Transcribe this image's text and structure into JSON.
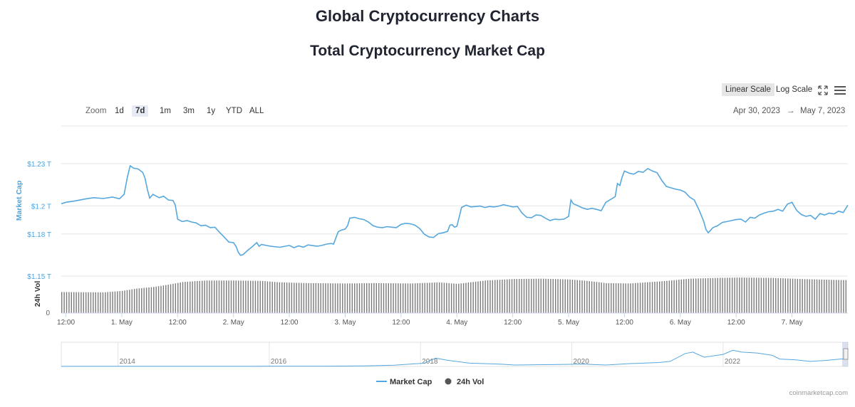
{
  "header": {
    "page_title": "Global Cryptocurrency Charts",
    "chart_title": "Total Cryptocurrency Market Cap"
  },
  "controls": {
    "zoom_label": "Zoom",
    "zoom_options": [
      "1d",
      "7d",
      "1m",
      "3m",
      "1y",
      "YTD",
      "ALL"
    ],
    "zoom_selected": "7d",
    "linear_scale_label": "Linear Scale",
    "log_scale_label": "Log Scale",
    "scale_selected": "Linear Scale",
    "range_from": "Apr 30, 2023",
    "range_arrow": "→",
    "range_to": "May 7, 2023"
  },
  "watermark": "coinmarketcap.com",
  "colors": {
    "market_cap_line": "#56a7dd",
    "volume_bar": "#7a7a7a",
    "grid": "#e6e6e6",
    "axis_label": "#4aa3df",
    "active_button": "#e6ebf5"
  },
  "chart_data": {
    "type": "line",
    "x_tick_labels": [
      "12:00",
      "1. May",
      "12:00",
      "2. May",
      "12:00",
      "3. May",
      "12:00",
      "4. May",
      "12:00",
      "5. May",
      "12:00",
      "6. May",
      "12:00",
      "7. May"
    ],
    "x_tick_hours": [
      12,
      24,
      36,
      48,
      60,
      72,
      84,
      96,
      108,
      120,
      132,
      144,
      156,
      168
    ],
    "x_range_hours": [
      11,
      180
    ],
    "market_cap": {
      "name": "Market Cap",
      "ylabel": "Market Cap",
      "y_tick_labels": [
        "$1.15 T",
        "$1.18 T",
        "$1.2 T",
        "$1.23 T"
      ],
      "y_ticks": [
        1.15,
        1.18,
        1.2,
        1.23
      ],
      "ylim": [
        1.15,
        1.23
      ],
      "points": [
        [
          11,
          1.2015
        ],
        [
          12,
          1.2025
        ],
        [
          14,
          1.2035
        ],
        [
          16,
          1.2048
        ],
        [
          18,
          1.2058
        ],
        [
          20,
          1.2052
        ],
        [
          22,
          1.2062
        ],
        [
          23.5,
          1.205
        ],
        [
          24.5,
          1.2082
        ],
        [
          25.2,
          1.2205
        ],
        [
          25.8,
          1.2285
        ],
        [
          26.5,
          1.2268
        ],
        [
          27.5,
          1.2262
        ],
        [
          28.5,
          1.2238
        ],
        [
          29,
          1.2195
        ],
        [
          29.5,
          1.2115
        ],
        [
          30,
          1.2055
        ],
        [
          30.7,
          1.2082
        ],
        [
          32,
          1.2058
        ],
        [
          33,
          1.2068
        ],
        [
          34,
          1.2042
        ],
        [
          35,
          1.2038
        ],
        [
          35.5,
          1.2005
        ],
        [
          36,
          1.1905
        ],
        [
          37,
          1.1888
        ],
        [
          38,
          1.1895
        ],
        [
          39,
          1.1885
        ],
        [
          40,
          1.1878
        ],
        [
          41,
          1.1858
        ],
        [
          42,
          1.1862
        ],
        [
          43,
          1.1845
        ],
        [
          44,
          1.1848
        ],
        [
          45,
          1.1812
        ],
        [
          46,
          1.1778
        ],
        [
          47,
          1.1742
        ],
        [
          48,
          1.1738
        ],
        [
          48.6,
          1.1708
        ],
        [
          49,
          1.1672
        ],
        [
          49.5,
          1.1648
        ],
        [
          50,
          1.1652
        ],
        [
          51,
          1.1682
        ],
        [
          52,
          1.1708
        ],
        [
          53,
          1.1738
        ],
        [
          53.5,
          1.1712
        ],
        [
          54,
          1.1725
        ],
        [
          56,
          1.1712
        ],
        [
          58,
          1.1705
        ],
        [
          60,
          1.1718
        ],
        [
          61,
          1.1702
        ],
        [
          62,
          1.1715
        ],
        [
          63,
          1.1705
        ],
        [
          64,
          1.1722
        ],
        [
          66,
          1.1712
        ],
        [
          67,
          1.1718
        ],
        [
          68,
          1.1728
        ],
        [
          69,
          1.1732
        ],
        [
          69.5,
          1.1728
        ],
        [
          70,
          1.1772
        ],
        [
          70.5,
          1.1815
        ],
        [
          71,
          1.1825
        ],
        [
          72,
          1.1835
        ],
        [
          72.5,
          1.1858
        ],
        [
          73,
          1.1912
        ],
        [
          74,
          1.1918
        ],
        [
          75,
          1.1908
        ],
        [
          76,
          1.1902
        ],
        [
          77,
          1.1885
        ],
        [
          78,
          1.1858
        ],
        [
          79,
          1.1848
        ],
        [
          80,
          1.1845
        ],
        [
          81,
          1.1852
        ],
        [
          82,
          1.1848
        ],
        [
          83,
          1.1845
        ],
        [
          84,
          1.1868
        ],
        [
          85,
          1.1875
        ],
        [
          86,
          1.1872
        ],
        [
          87,
          1.1862
        ],
        [
          88,
          1.1838
        ],
        [
          89,
          1.1798
        ],
        [
          90,
          1.1778
        ],
        [
          91,
          1.1775
        ],
        [
          92,
          1.1802
        ],
        [
          93,
          1.1808
        ],
        [
          94,
          1.1818
        ],
        [
          94.5,
          1.1862
        ],
        [
          95,
          1.1865
        ],
        [
          95.5,
          1.1848
        ],
        [
          96,
          1.1855
        ],
        [
          97,
          1.1988
        ],
        [
          98,
          1.2005
        ],
        [
          99,
          1.1992
        ],
        [
          100,
          1.1995
        ],
        [
          101,
          1.1998
        ],
        [
          102,
          1.1988
        ],
        [
          103,
          1.1995
        ],
        [
          104,
          1.1992
        ],
        [
          105,
          1.1998
        ],
        [
          106,
          1.2008
        ],
        [
          107,
          1.2001
        ],
        [
          108,
          1.1992
        ],
        [
          109,
          1.1995
        ],
        [
          110,
          1.1948
        ],
        [
          111,
          1.1918
        ],
        [
          112,
          1.1915
        ],
        [
          113,
          1.1935
        ],
        [
          114,
          1.1932
        ],
        [
          115,
          1.1912
        ],
        [
          116,
          1.1895
        ],
        [
          117,
          1.1905
        ],
        [
          118,
          1.1902
        ],
        [
          119,
          1.1905
        ],
        [
          120,
          1.1925
        ],
        [
          120.5,
          1.2042
        ],
        [
          121,
          1.2015
        ],
        [
          122,
          1.2001
        ],
        [
          123,
          1.1985
        ],
        [
          124,
          1.1975
        ],
        [
          125,
          1.1982
        ],
        [
          126,
          1.1975
        ],
        [
          127,
          1.1965
        ],
        [
          127.5,
          1.1995
        ],
        [
          128,
          1.2025
        ],
        [
          129,
          1.2045
        ],
        [
          130,
          1.2065
        ],
        [
          130.5,
          1.2158
        ],
        [
          131,
          1.2145
        ],
        [
          131.5,
          1.2205
        ],
        [
          132,
          1.2248
        ],
        [
          133,
          1.2232
        ],
        [
          134,
          1.2225
        ],
        [
          135,
          1.2245
        ],
        [
          136,
          1.2238
        ],
        [
          137,
          1.2265
        ],
        [
          138,
          1.2248
        ],
        [
          139,
          1.2235
        ],
        [
          140,
          1.2182
        ],
        [
          141,
          1.2138
        ],
        [
          142,
          1.2128
        ],
        [
          143,
          1.2118
        ],
        [
          144,
          1.2112
        ],
        [
          145,
          1.2098
        ],
        [
          146,
          1.2062
        ],
        [
          147,
          1.2042
        ],
        [
          148,
          1.1972
        ],
        [
          149,
          1.1892
        ],
        [
          149.5,
          1.1832
        ],
        [
          150,
          1.1808
        ],
        [
          151,
          1.1845
        ],
        [
          152,
          1.1858
        ],
        [
          153,
          1.1882
        ],
        [
          154,
          1.1888
        ],
        [
          155,
          1.1895
        ],
        [
          156,
          1.1902
        ],
        [
          157,
          1.1905
        ],
        [
          158,
          1.1885
        ],
        [
          159,
          1.1918
        ],
        [
          160,
          1.1912
        ],
        [
          161,
          1.1935
        ],
        [
          162,
          1.1948
        ],
        [
          163,
          1.1958
        ],
        [
          164,
          1.1962
        ],
        [
          165,
          1.1975
        ],
        [
          166,
          1.1962
        ],
        [
          167,
          1.2012
        ],
        [
          168,
          1.2025
        ],
        [
          168.5,
          1.1995
        ],
        [
          169,
          1.1968
        ],
        [
          170,
          1.1938
        ],
        [
          171,
          1.1925
        ],
        [
          172,
          1.1932
        ],
        [
          173,
          1.1905
        ],
        [
          174,
          1.1945
        ],
        [
          175,
          1.1935
        ],
        [
          176,
          1.1948
        ],
        [
          177,
          1.1942
        ],
        [
          178,
          1.1962
        ],
        [
          179,
          1.1952
        ],
        [
          180,
          1.2005
        ]
      ]
    },
    "volume": {
      "name": "24h Vol",
      "ylabel": "24h Vol",
      "y_tick_labels": [
        "0"
      ],
      "relative_points": [
        [
          11,
          0.57
        ],
        [
          20,
          0.56
        ],
        [
          24,
          0.6
        ],
        [
          27,
          0.66
        ],
        [
          31,
          0.71
        ],
        [
          34,
          0.77
        ],
        [
          37,
          0.84
        ],
        [
          42,
          0.88
        ],
        [
          48,
          0.88
        ],
        [
          54,
          0.87
        ],
        [
          58,
          0.83
        ],
        [
          64,
          0.81
        ],
        [
          72,
          0.8
        ],
        [
          78,
          0.81
        ],
        [
          86,
          0.8
        ],
        [
          92,
          0.83
        ],
        [
          96,
          0.79
        ],
        [
          102,
          0.88
        ],
        [
          108,
          0.92
        ],
        [
          114,
          0.93
        ],
        [
          120,
          0.91
        ],
        [
          124,
          0.87
        ],
        [
          128,
          0.81
        ],
        [
          133,
          0.8
        ],
        [
          140,
          0.86
        ],
        [
          146,
          0.93
        ],
        [
          152,
          0.95
        ],
        [
          157,
          0.96
        ],
        [
          164,
          0.95
        ],
        [
          170,
          0.92
        ],
        [
          176,
          0.9
        ],
        [
          180,
          0.89
        ]
      ]
    },
    "navigator": {
      "tick_labels": [
        "2014",
        "2016",
        "2018",
        "2020",
        "2022"
      ],
      "tick_years": [
        2013.75,
        2015.75,
        2017.75,
        2019.75,
        2021.75
      ],
      "x_range_years": [
        2013.0,
        2023.4
      ],
      "relative_points": [
        [
          2013.0,
          0.01
        ],
        [
          2013.5,
          0.02
        ],
        [
          2014.5,
          0.02
        ],
        [
          2015.5,
          0.02
        ],
        [
          2016.5,
          0.03
        ],
        [
          2017.0,
          0.06
        ],
        [
          2017.4,
          0.14
        ],
        [
          2017.8,
          0.35
        ],
        [
          2017.95,
          0.9
        ],
        [
          2018.1,
          0.68
        ],
        [
          2018.4,
          0.35
        ],
        [
          2018.8,
          0.25
        ],
        [
          2019.0,
          0.15
        ],
        [
          2019.5,
          0.2
        ],
        [
          2019.9,
          0.25
        ],
        [
          2020.2,
          0.15
        ],
        [
          2020.5,
          0.3
        ],
        [
          2020.9,
          0.42
        ],
        [
          2021.05,
          0.55
        ],
        [
          2021.25,
          1.4
        ],
        [
          2021.35,
          1.55
        ],
        [
          2021.5,
          1.0
        ],
        [
          2021.75,
          1.3
        ],
        [
          2021.88,
          1.75
        ],
        [
          2022.0,
          1.55
        ],
        [
          2022.2,
          1.45
        ],
        [
          2022.4,
          1.2
        ],
        [
          2022.5,
          0.8
        ],
        [
          2022.7,
          0.72
        ],
        [
          2022.9,
          0.55
        ],
        [
          2023.1,
          0.65
        ],
        [
          2023.3,
          0.8
        ],
        [
          2023.4,
          0.82
        ]
      ]
    },
    "legend": [
      {
        "name": "Market Cap",
        "symbol": "line"
      },
      {
        "name": "24h Vol",
        "symbol": "circle"
      }
    ],
    "legend_position": "bottom-center"
  }
}
